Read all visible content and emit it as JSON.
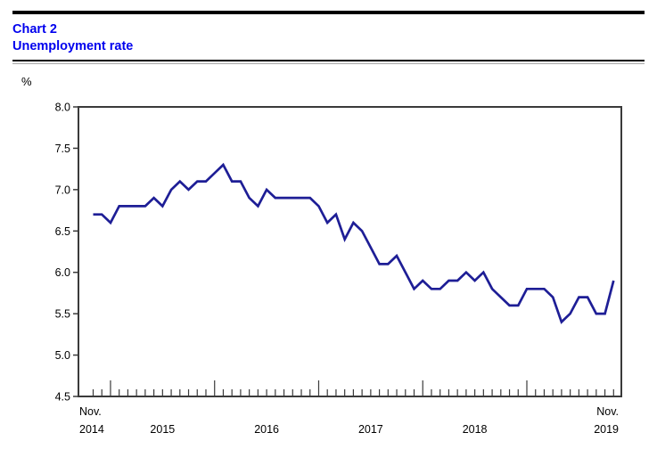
{
  "header": {
    "chart_label": "Chart 2",
    "chart_title": "Unemployment rate",
    "title_color": "#0000EE"
  },
  "chart_data": {
    "type": "line",
    "title": "Chart 2",
    "subtitle": "Unemployment rate",
    "ylabel": "%",
    "ylim": [
      4.5,
      8.0
    ],
    "ytick_labels": [
      "8.0",
      "7.5",
      "7.0",
      "6.5",
      "6.0",
      "5.5",
      "5.0",
      "4.5"
    ],
    "grid": false,
    "legend_position": "none",
    "line_color": "#1E1E96",
    "axis_color": "#3a3a3a",
    "x_axis": {
      "minor_ticks": "monthly",
      "major_ticks": "each January",
      "start_label_line1": "Nov.",
      "start_label_line2": "2014",
      "end_label_line1": "Nov.",
      "end_label_line2": "2019",
      "year_labels": [
        "2015",
        "2016",
        "2017",
        "2018"
      ]
    },
    "series": [
      {
        "name": "Unemployment rate",
        "unit": "%",
        "frequency": "monthly",
        "start": "November 2014",
        "end": "November 2019",
        "values": [
          6.7,
          6.7,
          6.6,
          6.8,
          6.8,
          6.8,
          6.8,
          6.9,
          6.8,
          7.0,
          7.1,
          7.0,
          7.1,
          7.1,
          7.2,
          7.3,
          7.1,
          7.1,
          6.9,
          6.8,
          7.0,
          6.9,
          6.9,
          6.9,
          6.9,
          6.9,
          6.8,
          6.6,
          6.7,
          6.4,
          6.6,
          6.5,
          6.3,
          6.1,
          6.1,
          6.2,
          6.0,
          5.8,
          5.9,
          5.8,
          5.8,
          5.9,
          5.9,
          6.0,
          5.9,
          6.0,
          5.8,
          5.7,
          5.6,
          5.6,
          5.8,
          5.8,
          5.8,
          5.7,
          5.4,
          5.5,
          5.7,
          5.7,
          5.5,
          5.5,
          5.9
        ]
      }
    ]
  }
}
